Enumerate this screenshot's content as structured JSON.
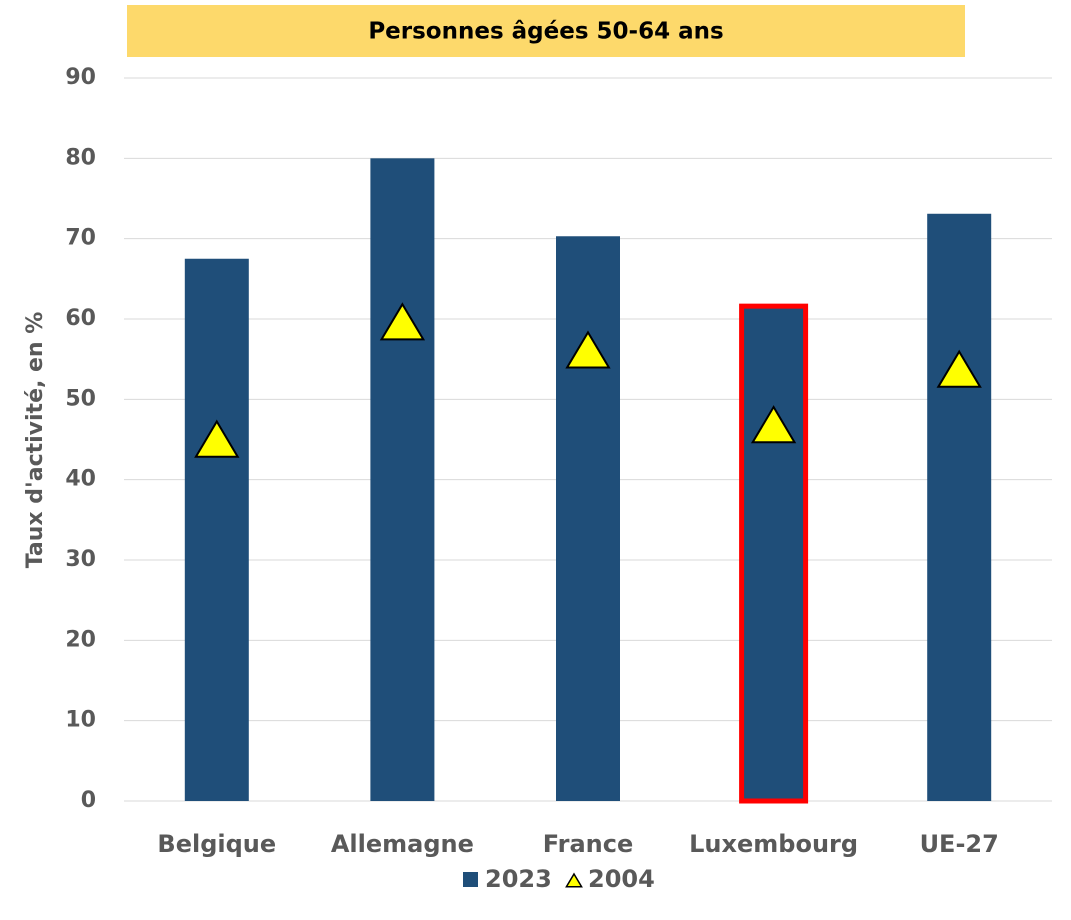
{
  "chart_data": {
    "type": "bar",
    "title": "Personnes âgées 50-64 ans",
    "y_label": "Taux d'activité, en %",
    "categories": [
      "Belgique",
      "Allemagne",
      "France",
      "Luxembourg",
      "UE-27"
    ],
    "series": [
      {
        "name": "2023",
        "color": "#1f4e79",
        "marker": "bar",
        "values": [
          67.5,
          80.0,
          70.3,
          61.6,
          73.1
        ]
      },
      {
        "name": "2004",
        "color": "#ffff00",
        "marker": "triangle",
        "values": [
          45.0,
          59.6,
          56.1,
          46.8,
          53.7
        ]
      }
    ],
    "highlight": {
      "category_index": 3,
      "color": "#ff0000"
    },
    "ylim": [
      0,
      90
    ],
    "yticks": [
      0,
      10,
      20,
      30,
      40,
      50,
      60,
      70,
      80,
      90
    ],
    "grid": true,
    "legend": "bottom"
  }
}
